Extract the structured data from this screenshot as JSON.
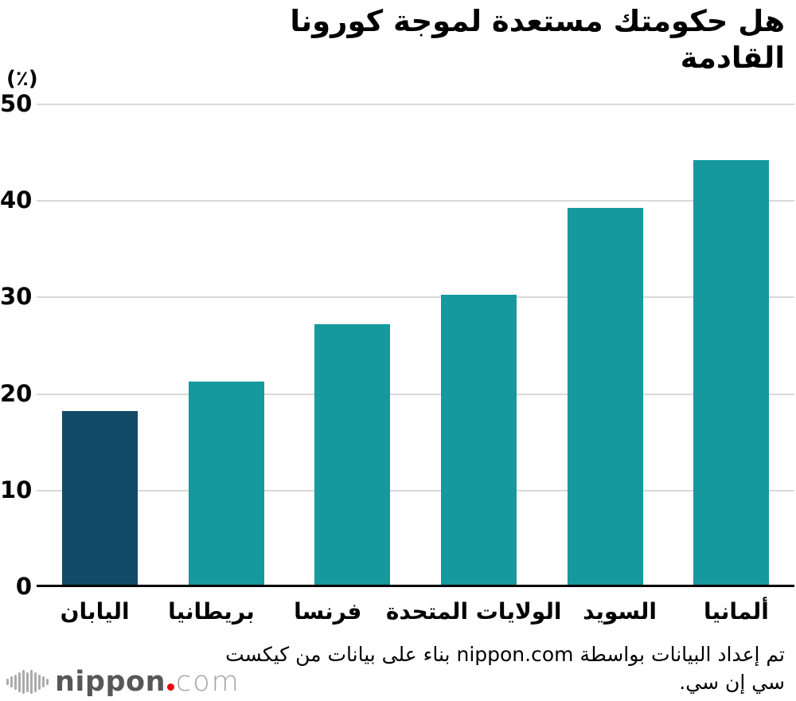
{
  "title": "هل حكومتك مستعدة لموجة كورونا القادمة",
  "unit_label": "(٪)",
  "footer": {
    "line1": "تم إعداد البيانات بواسطة nippon.com بناء على بيانات من كيكست",
    "line2": "سي إن سي."
  },
  "logo": {
    "name": "nippon",
    "tld": "com",
    "dot_color": "#e60012",
    "mark_bar_heights": [
      8,
      14,
      19,
      25,
      30,
      25,
      30,
      25,
      19,
      14,
      8
    ]
  },
  "colors": {
    "bar": "#16999C",
    "highlight_bar": "#114A66",
    "gridline": "#d9d9d9",
    "axis": "#000000",
    "text": "#000000"
  },
  "chart_data": {
    "type": "bar",
    "title": "هل حكومتك مستعدة لموجة كورونا القادمة",
    "categories": [
      "اليابان",
      "بريطانيا",
      "فرنسا",
      "الولايات المتحدة",
      "السويد",
      "ألمانيا"
    ],
    "values": [
      18,
      21,
      27,
      30,
      39,
      44
    ],
    "highlight_index": 0,
    "xlabel": "",
    "ylabel": "(٪)",
    "ylim": [
      0,
      50
    ],
    "yticks": [
      0,
      10,
      20,
      30,
      40,
      50
    ],
    "grid": true,
    "legend": false
  }
}
